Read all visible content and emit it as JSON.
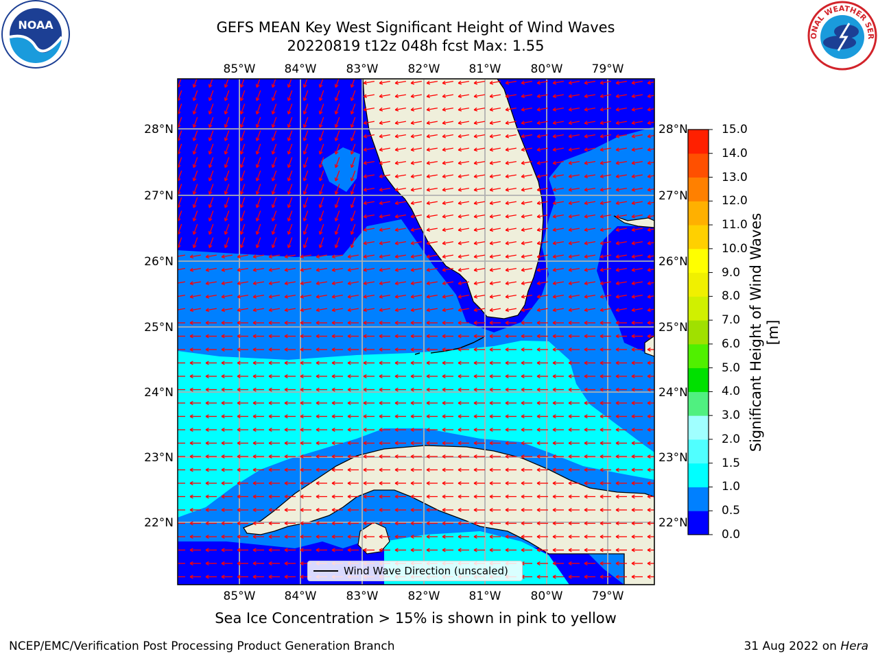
{
  "title": {
    "line1": "GEFS MEAN Key West Significant Height of Wind Waves",
    "line2": "20220819 t12z 048h fcst   Max: 1.55"
  },
  "map": {
    "lon_labels": [
      "85°W",
      "84°W",
      "83°W",
      "82°W",
      "81°W",
      "80°W",
      "79°W"
    ],
    "lat_labels": [
      "28°N",
      "27°N",
      "26°N",
      "25°N",
      "24°N",
      "23°N",
      "22°N"
    ],
    "lon_range": [
      -86,
      -78.25
    ],
    "lat_range": [
      21.1,
      28.75
    ],
    "land_color": "#efefdb",
    "arrow_color": "#ff0000",
    "grid_color": "#b0b0b0"
  },
  "legend": {
    "label": "Wind Wave Direction (unscaled)"
  },
  "colorbar": {
    "label": "Significant Height of Wind Waves [m]",
    "ticks": [
      "0.0",
      "0.5",
      "1.0",
      "1.5",
      "2.0",
      "3.0",
      "4.0",
      "5.0",
      "6.0",
      "7.0",
      "8.0",
      "9.0",
      "10.0",
      "11.0",
      "12.0",
      "13.0",
      "14.0",
      "15.0"
    ],
    "colors": [
      "#0000ff",
      "#0080ff",
      "#00ffff",
      "#50ffff",
      "#a0ffff",
      "#50f080",
      "#00e000",
      "#50f000",
      "#a0e000",
      "#d0f000",
      "#f0f000",
      "#ffff00",
      "#ffd000",
      "#ffb000",
      "#ff8000",
      "#ff5000",
      "#ff2000"
    ]
  },
  "sea_ice_note": "Sea Ice Concentration > 15% is shown in pink to yellow",
  "footer": {
    "left": "NCEP/EMC/Verification Post Processing Product Generation Branch",
    "right_prefix": "31 Aug 2022 on ",
    "right_host": "Hera"
  },
  "logos": {
    "noaa": "NOAA",
    "nws": "NATIONAL WEATHER SERVICE"
  }
}
